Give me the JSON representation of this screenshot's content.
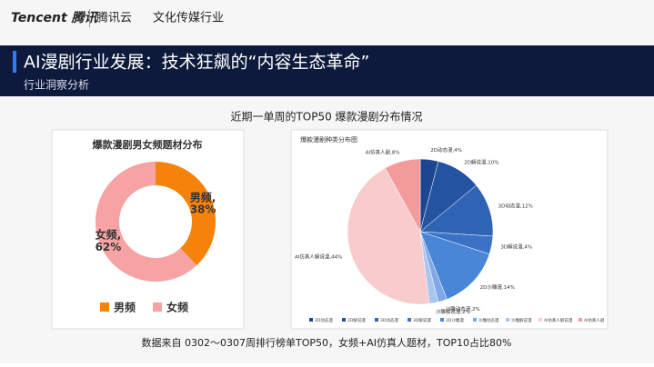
{
  "header": {
    "brand": "Tencent 腾讯",
    "product": "腾讯云",
    "division": "文化传媒行业",
    "title": "AI漫剧行业发展：技术狂飙的“内容生态革命”",
    "subtitle": "行业洞察分析"
  },
  "section_title": "近期一单周的TOP50 爆款漫剧分布情况",
  "chart_data": [
    {
      "type": "donut",
      "title": "爆款漫剧男女频题材分布",
      "categories": [
        "男频",
        "女频"
      ],
      "values": [
        38,
        62
      ],
      "value_labels": [
        "男频, 38%",
        "女频, 62%"
      ],
      "colors": [
        "#f5820a",
        "#f7a3a3"
      ]
    },
    {
      "type": "pie",
      "title": "爆款漫剧种类分布图",
      "categories": [
        "2D动态漫",
        "2D解说漫",
        "3D动态漫",
        "3D解说漫",
        "2D沙雕漫",
        "沙雕动态漫",
        "沙雕解说漫",
        "AI仿真人解说漫",
        "AI仿真人剧"
      ],
      "values": [
        4,
        10,
        12,
        4,
        14,
        2,
        2,
        44,
        8
      ],
      "value_labels": [
        "2D动态漫,4%",
        "2D解说漫,10%",
        "3D动态漫,12%",
        "3D解说漫,4%",
        "2D沙雕漫,14%",
        "沙雕动态漫,2%",
        "沙雕解说漫,2%",
        "AI仿真人解说漫,44%",
        "AI仿真人剧,8%"
      ],
      "colors": [
        "#1d4690",
        "#24549f",
        "#2f64b5",
        "#3a72c6",
        "#4a86d8",
        "#7fa9e6",
        "#aac6ef",
        "#f8cccc",
        "#f39b9b"
      ]
    }
  ],
  "caption": "数据来自 0302～0307周排行榜单TOP50，女频+AI仿真人题材，TOP10占比80%"
}
